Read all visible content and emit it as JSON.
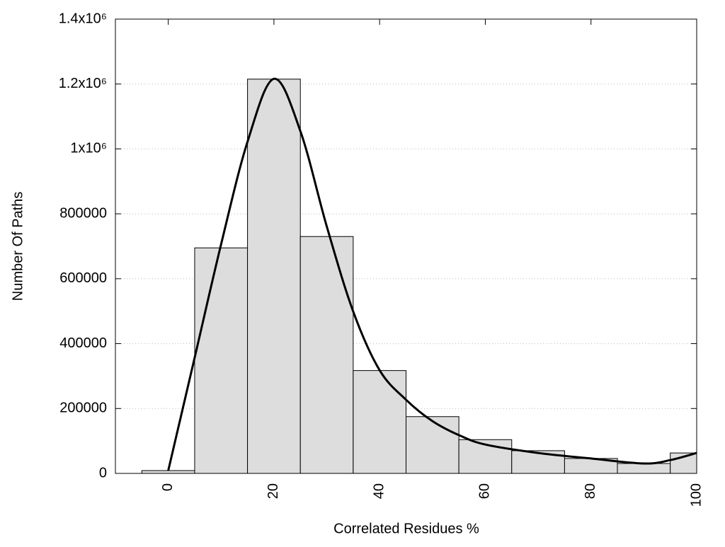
{
  "chart_data": {
    "type": "histogram",
    "x_label": "Correlated Residues %",
    "y_label": "Number Of Paths",
    "bins": [
      -5,
      5,
      15,
      25,
      35,
      45,
      55,
      65,
      75,
      85,
      95,
      100
    ],
    "values": [
      8700,
      695000,
      1215000,
      730000,
      317000,
      175000,
      104000,
      70000,
      46000,
      30500,
      63000
    ],
    "color": "#dddddd",
    "curve": {
      "color": "#000000",
      "x": [
        0,
        5,
        10,
        15,
        20,
        25,
        30,
        35,
        40,
        45,
        50,
        55,
        60,
        70,
        80,
        90,
        95,
        100
      ],
      "values": [
        8700,
        357000,
        706000,
        1022000,
        1216000,
        1055000,
        761000,
        499000,
        318000,
        227000,
        161000,
        118000,
        89000,
        63000,
        46000,
        30500,
        41000,
        63000
      ]
    },
    "xlim": [
      -10,
      100
    ],
    "ylim": [
      0,
      1400000
    ],
    "xticks": [
      0,
      20,
      40,
      60,
      80,
      100
    ],
    "yticks": [
      0,
      200000,
      400000,
      600000,
      800000,
      {
        "value": 1000000,
        "label": "1x10⁶"
      },
      {
        "value": 1200000,
        "label": "1.2x10⁶"
      },
      {
        "value": 1400000,
        "label": "1.4x10⁶"
      }
    ],
    "grid": true
  }
}
